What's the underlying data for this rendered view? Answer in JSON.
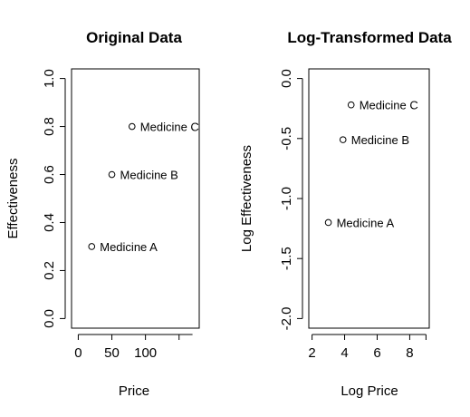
{
  "chart_data": [
    {
      "type": "scatter",
      "title": "Original Data",
      "xlabel": "Price",
      "ylabel": "Effectiveness",
      "xlim": [
        -10,
        180
      ],
      "ylim": [
        -0.04,
        1.04
      ],
      "xticks": [
        0,
        50,
        100
      ],
      "xtick_labels": [
        "0",
        "50",
        "100"
      ],
      "yticks": [
        0.0,
        0.2,
        0.4,
        0.6,
        0.8,
        1.0
      ],
      "ytick_labels": [
        "0.0",
        "0.2",
        "0.4",
        "0.6",
        "0.8",
        "1.0"
      ],
      "grid": false,
      "points": [
        {
          "x": 20,
          "y": 0.3,
          "label": "Medicine A"
        },
        {
          "x": 50,
          "y": 0.6,
          "label": "Medicine B"
        },
        {
          "x": 80,
          "y": 0.8,
          "label": "Medicine C"
        }
      ]
    },
    {
      "type": "scatter",
      "title": "Log-Transformed Data",
      "xlabel": "Log Price",
      "ylabel": "Log Effectiveness",
      "xlim": [
        1.8,
        9.2
      ],
      "ylim": [
        -2.08,
        0.08
      ],
      "xticks": [
        2,
        4,
        6,
        8
      ],
      "xtick_labels": [
        "2",
        "4",
        "6",
        "8"
      ],
      "yticks": [
        -2.0,
        -1.5,
        -1.0,
        -0.5,
        0.0
      ],
      "ytick_labels": [
        "-2.0",
        "-1.5",
        "-1.0",
        "-0.5",
        "0.0"
      ],
      "grid": false,
      "points": [
        {
          "x": 3.0,
          "y": -1.2,
          "label": "Medicine A"
        },
        {
          "x": 3.9,
          "y": -0.51,
          "label": "Medicine B"
        },
        {
          "x": 4.4,
          "y": -0.22,
          "label": "Medicine C"
        }
      ]
    }
  ]
}
